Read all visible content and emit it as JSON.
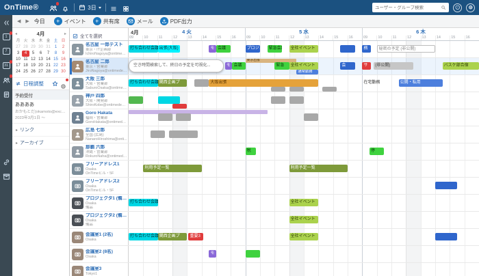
{
  "topbar": {
    "logo": "OnTime®",
    "day_selector": "3日",
    "search_placeholder": "ユーザー・グループ検索"
  },
  "toolbar": {
    "today": "今日",
    "buttons": [
      {
        "id": "event-button",
        "label": "イベント",
        "icon": "plus"
      },
      {
        "id": "shared-seat-button",
        "label": "共有席",
        "icon": "plus"
      },
      {
        "id": "mail-button",
        "label": "メール",
        "icon": "mail"
      },
      {
        "id": "pdf-export-button",
        "label": "PDF出力",
        "icon": "pdf"
      }
    ]
  },
  "rail": {
    "items": [
      {
        "icon": "collapse",
        "name": "collapse"
      },
      {
        "icon": "cal",
        "label": "1",
        "name": "day-view",
        "badge": true
      },
      {
        "icon": "cal",
        "label": "7",
        "name": "week-view"
      },
      {
        "icon": "cal",
        "label": "31",
        "name": "month-view",
        "badge": true
      },
      {
        "icon": "people",
        "name": "group-view",
        "badge": true
      },
      {
        "icon": "doc",
        "name": "notes"
      },
      {
        "icon": "link2",
        "name": "links",
        "gap": true
      },
      {
        "icon": "box",
        "name": "archive"
      }
    ]
  },
  "sidebar": {
    "minical": {
      "month": "4月",
      "dows": [
        "月",
        "火",
        "水",
        "木",
        "金",
        "土",
        "日"
      ],
      "weeks": [
        [
          27,
          28,
          29,
          30,
          31,
          1,
          2
        ],
        [
          3,
          4,
          5,
          6,
          7,
          8,
          9
        ],
        [
          10,
          11,
          12,
          13,
          14,
          15,
          16
        ],
        [
          17,
          18,
          19,
          20,
          21,
          22,
          23
        ],
        [
          24,
          25,
          26,
          27,
          28,
          29,
          30
        ]
      ],
      "selected": {
        "week": 1,
        "dow": 1,
        "day": 4
      }
    },
    "schedule_link": "日程調整",
    "reservation": {
      "header": "予約受付",
      "line1": "ああああ",
      "line2": "おかもとだ(okamoto@excel.c...",
      "line3": "2023年3月1日 〜"
    },
    "links": [
      {
        "label": "リンク"
      },
      {
        "label": "アーカイブ"
      }
    ]
  },
  "grid": {
    "month_label": "4月",
    "select_all": "全てを選択",
    "days": [
      {
        "label": "4 火"
      },
      {
        "label": "5 水"
      },
      {
        "label": "6 木"
      }
    ],
    "hours": [
      "09",
      "10",
      "11",
      "12",
      "13",
      "14",
      "15",
      "16"
    ]
  },
  "colors": {
    "topbar_bg": "#1b5180",
    "accent_blue": "#1b78c0",
    "selected_day_red": "#e23c3c",
    "events": {
      "cyan": {
        "bg": "#00d7e4",
        "fg": "#00323a"
      },
      "cyan2": {
        "bg": "#00f2ff",
        "fg": "#00323a"
      },
      "green": {
        "bg": "#3fd23f",
        "fg": "#0b3d0b"
      },
      "green2": {
        "bg": "#52b84f",
        "fg": "#ffffff"
      },
      "yellowgreen": {
        "bg": "#abd24d",
        "fg": "#2f3d07"
      },
      "olive": {
        "bg": "#7e9a3a",
        "fg": "#ffffff"
      },
      "gray": {
        "bg": "#a8a8a8",
        "fg": "#ffffff"
      },
      "gray2": {
        "bg": "#c6c6c6",
        "fg": "#3c3c3c"
      },
      "ghost": {
        "bg": "#ffffff",
        "fg": "#8a8a8a",
        "br": "#bcbcbc"
      },
      "orange": {
        "bg": "#e5a23a",
        "fg": "#5a3600"
      },
      "blue": {
        "bg": "#2f66cc",
        "fg": "#ffffff"
      },
      "blue2": {
        "bg": "#4d7fdd",
        "fg": "#ffffff"
      },
      "red": {
        "bg": "#e03c3c",
        "fg": "#ffffff"
      },
      "purple": {
        "bg": "#8a68d8",
        "fg": "#ffffff"
      },
      "tan": {
        "bg": "#d9b480",
        "fg": "#4f3508"
      },
      "lavender": {
        "bg": "#c8b3e6",
        "fg": "#4a3d63"
      },
      "plain": {
        "bg": "transparent",
        "fg": "#333333"
      }
    }
  },
  "rows": [
    {
      "name": "名古屋 一郎テスト",
      "org": "東京・IT企画部",
      "email": "IchiroNagoya@ontimede...",
      "kind": "person",
      "avc": "#8a97a0",
      "events": [
        {
          "d": 0,
          "s": 9,
          "e": 11,
          "c": "cyan",
          "t": "打ち合わせ会議"
        },
        {
          "d": 0,
          "s": 11,
          "e": 12.5,
          "c": "cyan2",
          "t": "出張(大阪)"
        },
        {
          "d": 0,
          "s": 14.5,
          "e": 15,
          "c": "purple",
          "t": "モ"
        },
        {
          "d": 0,
          "s": 15,
          "e": 16,
          "c": "green",
          "t": "会議"
        },
        {
          "d": 1,
          "s": 9,
          "e": 10,
          "c": "blue",
          "t": "プロジェク"
        },
        {
          "d": 1,
          "s": 10.5,
          "e": 11.5,
          "c": "green",
          "t": "緊急会議"
        },
        {
          "d": 1,
          "s": 12,
          "e": 14,
          "c": "yellowgreen",
          "t": "全社イベント"
        },
        {
          "d": 1,
          "s": 15.5,
          "e": 16.5,
          "c": "blue",
          "t": ""
        },
        {
          "d": 2,
          "s": 9,
          "e": 9.6,
          "c": "blue",
          "t": "務"
        },
        {
          "d": 2,
          "s": 10,
          "e": 14,
          "c": "ghost",
          "t": "秘密の予定 (非公開)"
        }
      ]
    },
    {
      "name": "名古屋 二郎",
      "org": "東京・営業部",
      "email": "JiroNagoya@ontimedem...",
      "kind": "person",
      "avc": "#a58a72",
      "selected": true,
      "events": [
        {
          "d": 0,
          "s": 9,
          "e": 15.5,
          "c": "popover",
          "t": "空き時間検索して、終日の予定を可視化..."
        },
        {
          "d": 0,
          "s": 15.6,
          "e": 16.1,
          "c": "purple",
          "t": "モ"
        },
        {
          "d": 0,
          "s": 16.1,
          "e": 17,
          "c": "green",
          "t": "会議"
        },
        {
          "d": 1,
          "s": 9,
          "e": 12.5,
          "c": "tan",
          "t": "東京出張",
          "lane": "banner"
        },
        {
          "d": 1,
          "s": 11,
          "e": 12,
          "c": "green",
          "t": "緊急"
        },
        {
          "d": 1,
          "s": 12,
          "e": 14,
          "c": "yellowgreen",
          "t": "全社イベント"
        },
        {
          "d": 1,
          "s": 12.5,
          "e": 14,
          "c": "blue2",
          "t": "通常勤務",
          "lane": "b"
        },
        {
          "d": 1,
          "s": 15.5,
          "e": 16.5,
          "c": "blue",
          "t": "会"
        },
        {
          "d": 2,
          "s": 9,
          "e": 9.6,
          "c": "red",
          "t": "サ"
        },
        {
          "d": 2,
          "s": 9.8,
          "e": 12.5,
          "c": "gray2",
          "t": "(非公開)"
        },
        {
          "d": 2,
          "s": 14.5,
          "e": 17,
          "c": "yellowgreen",
          "t": "バスケ部合宿"
        }
      ]
    },
    {
      "name": "大阪 三郎",
      "org": "大阪・営業部",
      "email": "SaburoOsaka@ontimede...",
      "kind": "person",
      "avc": "#7d8f9b",
      "events": [
        {
          "d": 0,
          "s": 9,
          "e": 11,
          "c": "cyan",
          "t": "打ち合わせ会議"
        },
        {
          "d": 0,
          "s": 11,
          "e": 13,
          "c": "olive",
          "t": "関西企画プ"
        },
        {
          "d": 0,
          "s": 13.5,
          "e": 14.5,
          "c": "gray",
          "t": ""
        },
        {
          "d": 0,
          "s": 14.5,
          "ed": 1,
          "e": 14,
          "c": "orange",
          "t": "大阪出張"
        },
        {
          "d": 1,
          "s": 10.75,
          "e": 11.75,
          "c": "gray",
          "t": "",
          "lane": "b"
        },
        {
          "d": 1,
          "s": 12,
          "e": 13,
          "c": "gray",
          "t": "",
          "lane": "b"
        },
        {
          "d": 1,
          "s": 14.25,
          "e": 15.25,
          "c": "gray",
          "t": "",
          "lane": "b"
        },
        {
          "d": 2,
          "s": 9,
          "e": 10.5,
          "c": "plain",
          "t": "在宅勤務"
        },
        {
          "d": 2,
          "s": 11.5,
          "e": 14.5,
          "c": "blue2",
          "t": "公開・私用"
        }
      ]
    },
    {
      "name": "神戸 四郎",
      "org": "大阪・開発部",
      "email": "ShiroKobe@ontimedemo...",
      "kind": "person",
      "avc": "#98a2ab",
      "events": [
        {
          "d": 0,
          "s": 9,
          "e": 10,
          "c": "green2",
          "t": ""
        },
        {
          "d": 0,
          "s": 11,
          "e": 12.5,
          "c": "cyan",
          "t": ""
        },
        {
          "d": 0,
          "s": 12,
          "e": 13,
          "c": "red",
          "t": "",
          "lane": "b"
        },
        {
          "d": 1,
          "s": 10.75,
          "e": 11.75,
          "c": "gray",
          "t": ""
        },
        {
          "d": 1,
          "s": 12,
          "e": 13,
          "c": "gray",
          "t": ""
        }
      ]
    },
    {
      "name": "Goro Hakata",
      "org": "福岡・営業部",
      "email": "GoroHakata@ontimedem...",
      "kind": "person",
      "avc": "#6f8192",
      "events": [
        {
          "d": 0,
          "s": 9,
          "ed": 1,
          "e": 10.5,
          "c": "lavender",
          "t": "",
          "lane": "banner"
        },
        {
          "d": 0,
          "s": 11,
          "e": 12,
          "c": "gray",
          "t": ""
        },
        {
          "d": 0,
          "s": 12.25,
          "e": 13.25,
          "c": "gray",
          "t": ""
        },
        {
          "d": 1,
          "s": 13,
          "e": 14,
          "c": "gray",
          "t": ""
        }
      ]
    },
    {
      "name": "広島 七郎",
      "org": "全国 (広島)",
      "email": "NanaroHiroshima@onti...",
      "kind": "person",
      "avc": "#a3988c",
      "events": [
        {
          "d": 0,
          "s": 10.5,
          "e": 11.5,
          "c": "gray",
          "t": ""
        },
        {
          "d": 0,
          "s": 11.75,
          "e": 13.75,
          "c": "gray",
          "t": ""
        }
      ]
    },
    {
      "name": "那覇 六郎",
      "org": "沖縄・営業部",
      "email": "RokuroNaha@ontimedem...",
      "kind": "person",
      "avc": "#8f9aa4",
      "events": [
        {
          "d": 1,
          "s": 9,
          "e": 9.7,
          "c": "green",
          "t": "税"
        },
        {
          "d": 2,
          "s": 9.5,
          "e": 10.5,
          "c": "green",
          "t": "停"
        }
      ]
    },
    {
      "name": "フリーアドレス1",
      "org": "Osaka",
      "email": "OnTimeビル・5F",
      "kind": "resource",
      "avc": "#7b8d99",
      "events": [
        {
          "d": 0,
          "s": 10,
          "e": 14,
          "c": "olive",
          "t": "利用予定一覧"
        },
        {
          "d": 1,
          "s": 12,
          "e": 16,
          "c": "olive",
          "t": "利用予定一覧"
        }
      ]
    },
    {
      "name": "フリーアドレス2",
      "org": "Osaka",
      "email": "OnTimeビル・5F",
      "kind": "resource",
      "avc": "#7b8d99",
      "events": [
        {
          "d": 2,
          "s": 14,
          "e": 15.5,
          "c": "blue",
          "t": ""
        }
      ]
    },
    {
      "name": "プロジェクタ1 (備品)",
      "org": "Osaka",
      "email": "備品",
      "kind": "resource",
      "avc": "#4a4f55",
      "events": [
        {
          "d": 0,
          "s": 9,
          "e": 11,
          "c": "cyan",
          "t": "打ち合わせ会議"
        },
        {
          "d": 1,
          "s": 12,
          "e": 14,
          "c": "yellowgreen",
          "t": "全社イベント"
        }
      ]
    },
    {
      "name": "プロジェクタ2 (備品)",
      "org": "Osaka",
      "email": "備品",
      "kind": "resource",
      "avc": "#4a4f55",
      "events": [
        {
          "d": 1,
          "s": 12,
          "e": 14,
          "c": "yellowgreen",
          "t": "全社イベント"
        }
      ]
    },
    {
      "name": "会議室1 (2名)",
      "org": "Osaka",
      "email": "",
      "kind": "resource",
      "avc": "#9a8778",
      "events": [
        {
          "d": 0,
          "s": 9,
          "e": 11,
          "c": "cyan",
          "t": "打ち合わせ会議"
        },
        {
          "d": 0,
          "s": 11,
          "e": 13,
          "c": "olive",
          "t": "関西企画プ"
        },
        {
          "d": 0,
          "s": 13.1,
          "e": 14.1,
          "c": "red",
          "t": "重要3"
        },
        {
          "d": 1,
          "s": 12,
          "e": 14,
          "c": "yellowgreen",
          "t": "全社イベント"
        },
        {
          "d": 2,
          "s": 14,
          "e": 15.5,
          "c": "blue",
          "t": ""
        }
      ]
    },
    {
      "name": "会議室2 (8名)",
      "org": "Osaka",
      "email": "",
      "kind": "resource",
      "avc": "#9a8778",
      "events": [
        {
          "d": 0,
          "s": 14.5,
          "e": 15,
          "c": "purple",
          "t": "モ"
        },
        {
          "d": 1,
          "s": 9,
          "e": 10,
          "c": "green",
          "t": ""
        }
      ]
    },
    {
      "name": "会議室3",
      "org": "Tokyo1",
      "email": "",
      "kind": "resource",
      "avc": "#9a8778",
      "events": []
    }
  ]
}
